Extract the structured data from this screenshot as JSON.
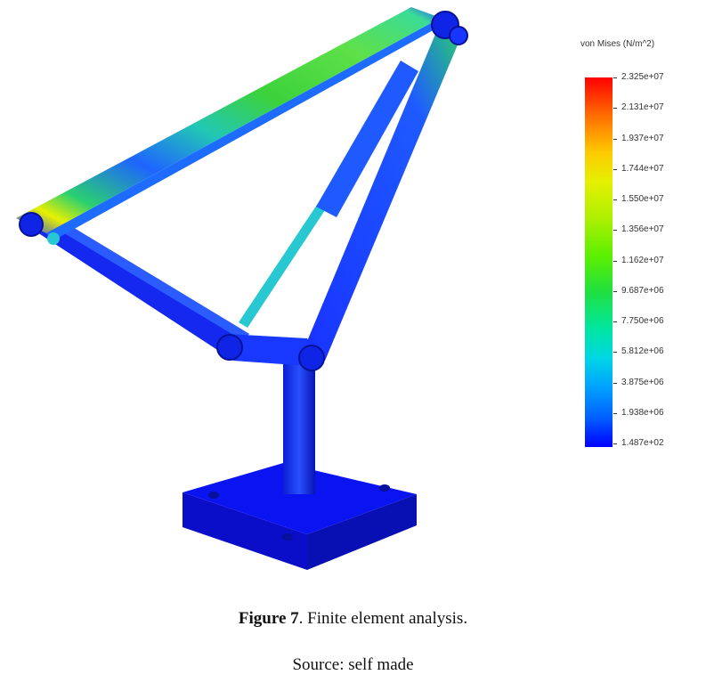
{
  "legend": {
    "title": "von Mises (N/m^2)",
    "ticks": [
      "2.325e+07",
      "2.131e+07",
      "1.937e+07",
      "1.744e+07",
      "1.550e+07",
      "1.356e+07",
      "1.162e+07",
      "9.687e+06",
      "7.750e+06",
      "5.812e+06",
      "3.875e+06",
      "1.938e+06",
      "1.487e+02"
    ]
  },
  "caption": {
    "label": "Figure 7",
    "text": ". Finite element analysis."
  },
  "source": "Source: self made",
  "colors": {
    "high_stress": "#ff0000",
    "mid_stress": "#3cf000",
    "low_stress": "#0000ff",
    "base": "#0a14e6"
  }
}
